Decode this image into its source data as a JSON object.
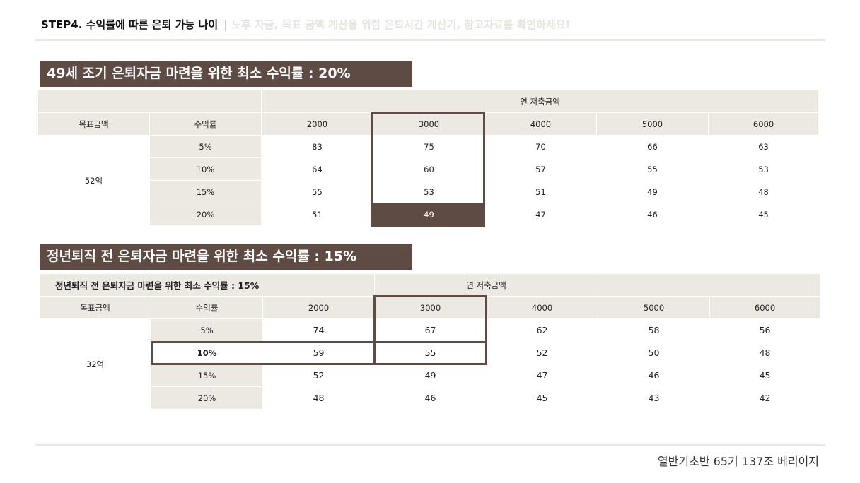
{
  "header": {
    "main": "STEP4. 수익률에 따른 은퇴 가능 나이",
    "separator": "|",
    "subtitle": "노후 자금, 목표 금액 계산을 위한 은퇴시간 계산기, 참고자료를 확인하세요!"
  },
  "section1": {
    "title": "49세 조기 은퇴자금 마련을 위한 최소 수익률 : 20%",
    "group_header": "연 저축금액",
    "col_target": "목표금액",
    "col_rate": "수익률",
    "amounts": [
      "2000",
      "3000",
      "4000",
      "5000",
      "6000"
    ],
    "target": "52억",
    "rows": [
      {
        "rate": "5%",
        "values": [
          "83",
          "75",
          "70",
          "66",
          "63"
        ]
      },
      {
        "rate": "10%",
        "values": [
          "64",
          "60",
          "57",
          "55",
          "53"
        ]
      },
      {
        "rate": "15%",
        "values": [
          "55",
          "53",
          "51",
          "49",
          "48"
        ]
      },
      {
        "rate": "20%",
        "values": [
          "51",
          "49",
          "47",
          "46",
          "45"
        ]
      }
    ]
  },
  "section2": {
    "title": "정년퇴직 전 은퇴자금 마련을 위한 최소 수익률 : 15%",
    "note": "정년퇴직 전 은퇴자금 마련을 위한 최소 수익률 : 15%",
    "group_header": "연 저축금액",
    "col_target": "목표금액",
    "col_rate": "수익률",
    "amounts": [
      "2000",
      "3000",
      "4000",
      "5000",
      "6000"
    ],
    "target": "32억",
    "rows": [
      {
        "rate": "5%",
        "values": [
          "74",
          "67",
          "62",
          "58",
          "56"
        ]
      },
      {
        "rate": "10%",
        "values": [
          "59",
          "55",
          "52",
          "50",
          "48"
        ]
      },
      {
        "rate": "15%",
        "values": [
          "52",
          "49",
          "47",
          "46",
          "45"
        ]
      },
      {
        "rate": "20%",
        "values": [
          "48",
          "46",
          "45",
          "43",
          "42"
        ]
      }
    ]
  },
  "footer": "열반기초반 65기 137조 베리이지",
  "colors": {
    "accent": "#5e4c44",
    "table_bg": "#ece9e3",
    "subtitle": "#e7e3dd"
  }
}
